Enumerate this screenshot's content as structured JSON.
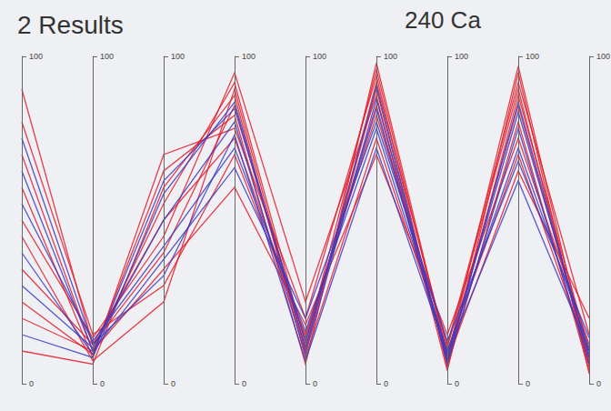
{
  "chart_data": {
    "type": "parallel",
    "title": "2 Results",
    "subtitle": "240 Ca",
    "grid": false,
    "axes": [
      {
        "ylim": [
          0,
          100
        ],
        "yticks": [
          0,
          100
        ]
      },
      {
        "ylim": [
          0,
          100
        ],
        "yticks": [
          0,
          100
        ]
      },
      {
        "ylim": [
          0,
          100
        ],
        "yticks": [
          0,
          100
        ]
      },
      {
        "ylim": [
          0,
          100
        ],
        "yticks": [
          0,
          100
        ]
      },
      {
        "ylim": [
          0,
          100
        ],
        "yticks": [
          0,
          100
        ]
      },
      {
        "ylim": [
          0,
          100
        ],
        "yticks": [
          0,
          100
        ]
      },
      {
        "ylim": [
          0,
          100
        ],
        "yticks": [
          0,
          100
        ]
      },
      {
        "ylim": [
          0,
          100
        ],
        "yticks": [
          0,
          100
        ]
      },
      {
        "ylim": [
          0,
          100
        ],
        "yticks": [
          0,
          100
        ]
      }
    ],
    "series": [
      {
        "color": "#e41e2b",
        "values": [
          [
            20,
            10,
            55,
            92,
            12,
            96,
            8,
            97,
            6
          ],
          [
            35,
            12,
            40,
            85,
            10,
            90,
            6,
            88,
            10
          ],
          [
            60,
            8,
            70,
            78,
            20,
            94,
            5,
            80,
            4
          ],
          [
            80,
            15,
            30,
            70,
            15,
            82,
            12,
            92,
            15
          ],
          [
            10,
            6,
            60,
            88,
            8,
            75,
            10,
            70,
            8
          ],
          [
            50,
            14,
            45,
            95,
            25,
            88,
            4,
            95,
            3
          ],
          [
            70,
            10,
            35,
            60,
            18,
            70,
            15,
            75,
            12
          ],
          [
            25,
            9,
            65,
            82,
            6,
            98,
            9,
            85,
            7
          ],
          [
            90,
            12,
            50,
            75,
            14,
            85,
            7,
            65,
            20
          ],
          [
            45,
            7,
            25,
            90,
            10,
            92,
            11,
            90,
            5
          ]
        ]
      },
      {
        "color": "#3b3bc4",
        "values": [
          [
            30,
            11,
            50,
            80,
            9,
            87,
            8,
            83,
            9
          ],
          [
            55,
            13,
            42,
            72,
            16,
            78,
            10,
            72,
            11
          ],
          [
            15,
            8,
            58,
            86,
            11,
            91,
            6,
            78,
            6
          ],
          [
            65,
            10,
            38,
            66,
            20,
            80,
            13,
            68,
            14
          ],
          [
            40,
            9,
            62,
            84,
            13,
            84,
            7,
            86,
            8
          ],
          [
            75,
            12,
            33,
            76,
            7,
            72,
            9,
            62,
            10
          ]
        ]
      }
    ]
  }
}
